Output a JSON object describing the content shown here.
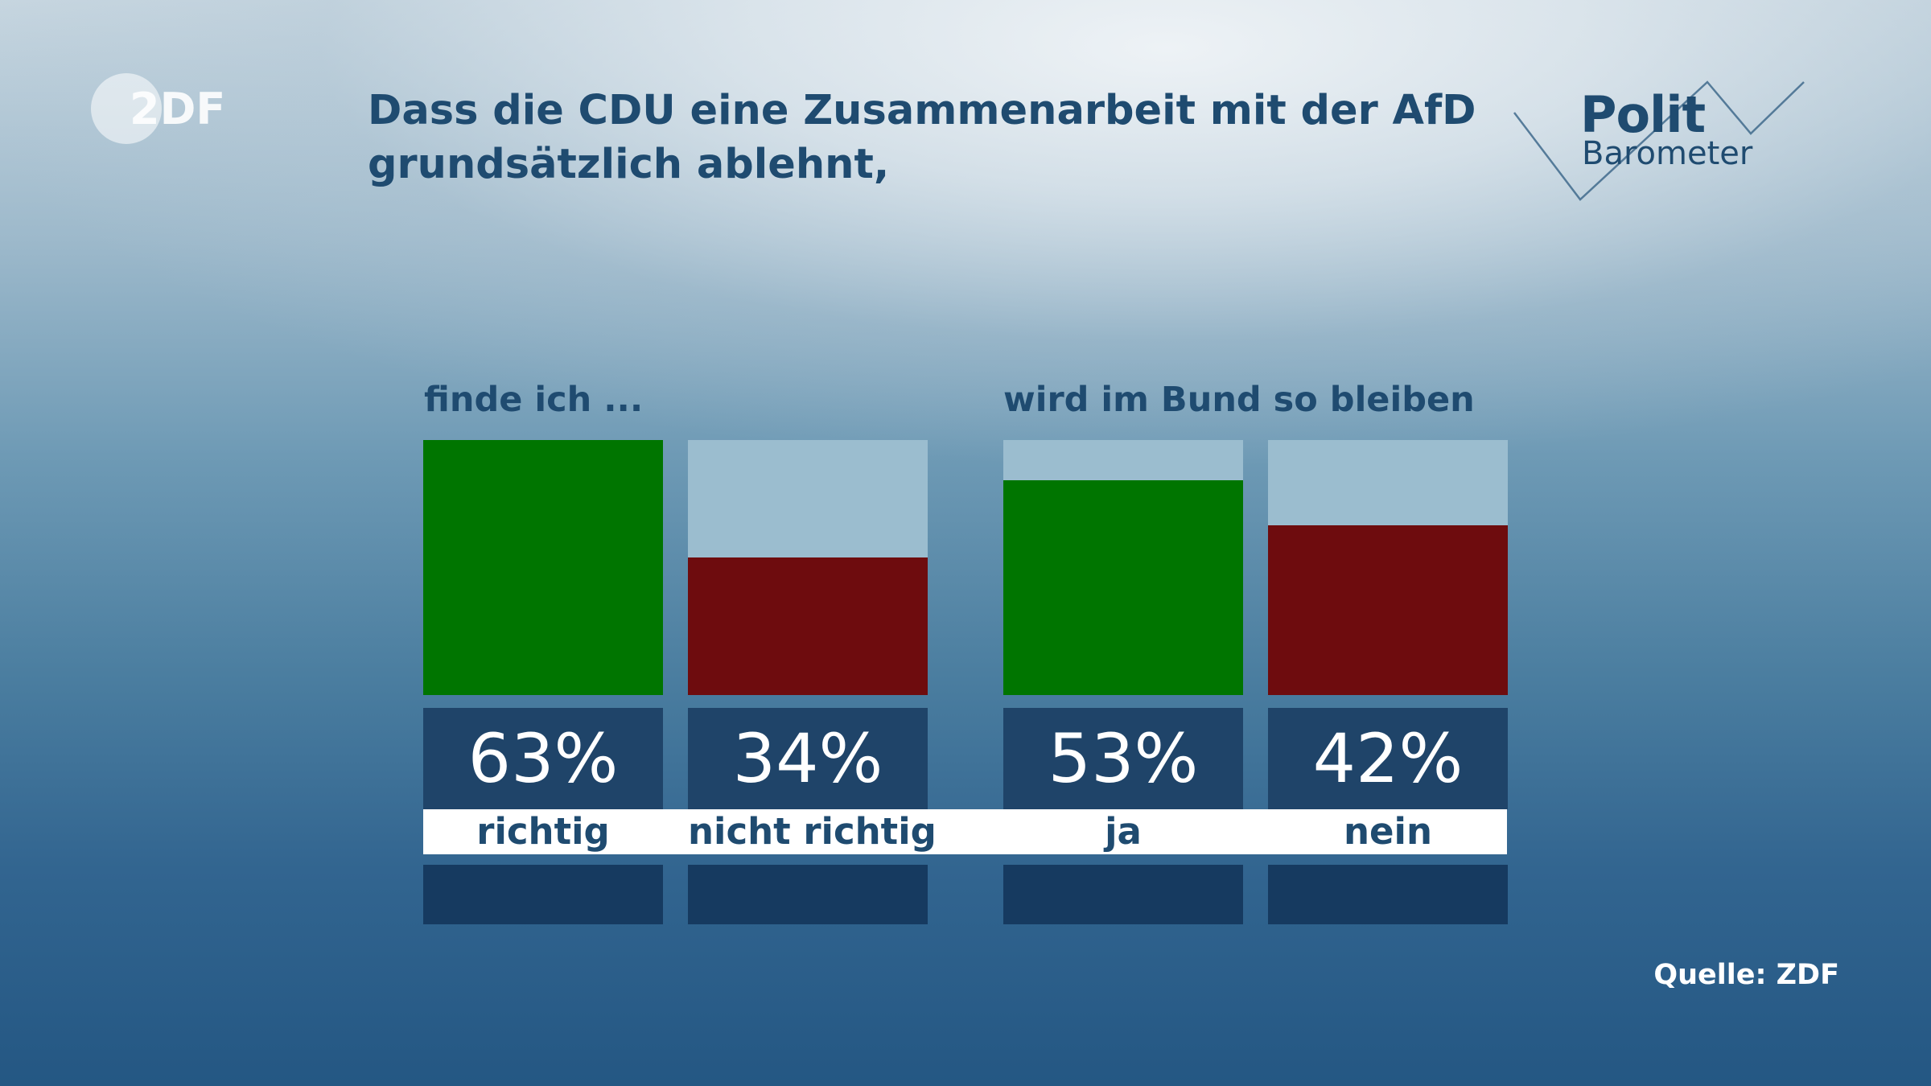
{
  "brand": {
    "zdf_logo_text": "2DF",
    "polit_text": "Polit",
    "barometer_text": "Barometer"
  },
  "title_lines": [
    "Dass die CDU eine Zusammenarbeit mit der AfD",
    "grundsätzlich ablehnt,"
  ],
  "source": "Quelle: ZDF",
  "colors": {
    "positive": "#007500",
    "negative": "#6e0c0e",
    "bar_background": "#9bbdcf",
    "value_box": "#1f4469",
    "text": "#1f4b70"
  },
  "chart_data": [
    {
      "type": "bar",
      "title": "finde ich ...",
      "categories": [
        "richtig",
        "nicht richtig"
      ],
      "values": [
        63,
        34
      ],
      "value_labels": [
        "63%",
        "34%"
      ],
      "unit": "%",
      "ylim": [
        0,
        63
      ]
    },
    {
      "type": "bar",
      "title": "wird im Bund so bleiben",
      "categories": [
        "ja",
        "nein"
      ],
      "values": [
        53,
        42
      ],
      "value_labels": [
        "53%",
        "42%"
      ],
      "unit": "%",
      "ylim": [
        0,
        63
      ]
    }
  ]
}
